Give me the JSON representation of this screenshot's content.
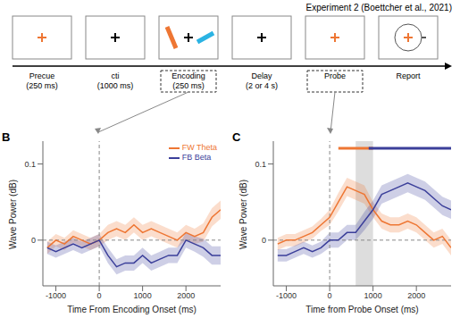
{
  "title": "Experiment 2 (Boettcher et al., 2021)",
  "panel_a": {
    "stages": [
      {
        "name": "Precue",
        "duration": "(250 ms)"
      },
      {
        "name": "cti",
        "duration": "(1000 ms)"
      },
      {
        "name": "Encoding",
        "duration": "(250 ms)"
      },
      {
        "name": "Delay",
        "duration": "(2 or 4 s)"
      },
      {
        "name": "Probe"
      },
      {
        "name": "Report"
      }
    ]
  },
  "chart_data": [
    {
      "type": "line",
      "label": "B",
      "x_label": "Time From Encoding Onset (ms)",
      "y_label": "Wave Power (dB)",
      "xlim": [
        -1300,
        2800
      ],
      "xticks": [
        -1000,
        0,
        1000,
        2000
      ],
      "ylim": [
        -0.06,
        0.13
      ],
      "yticks": [
        0,
        0.1
      ],
      "legend": "upper right",
      "reference_lines": [
        {
          "axis": "x",
          "value": 0
        },
        {
          "axis": "y",
          "value": 0
        }
      ],
      "x": [
        -1200,
        -1000,
        -800,
        -600,
        -400,
        -200,
        0,
        200,
        400,
        600,
        800,
        1000,
        1200,
        1400,
        1600,
        1800,
        2000,
        2200,
        2400,
        2600,
        2800
      ],
      "series": [
        {
          "name": "FW Theta",
          "color": "#ee7633",
          "values": [
            -0.01,
            0,
            -0.005,
            0.005,
            0,
            -0.005,
            0,
            0.01,
            0.015,
            0.01,
            0.02,
            0.01,
            0.015,
            0.01,
            0.005,
            0,
            0.01,
            0.005,
            0.01,
            0.03,
            0.04
          ],
          "errors": [
            0.008,
            0.008,
            0.008,
            0.008,
            0.008,
            0.008,
            0.008,
            0.01,
            0.01,
            0.01,
            0.01,
            0.01,
            0.01,
            0.01,
            0.01,
            0.01,
            0.01,
            0.01,
            0.012,
            0.012,
            0.012
          ]
        },
        {
          "name": "FB Beta",
          "color": "#3b3f9a",
          "values": [
            -0.01,
            -0.015,
            -0.01,
            -0.005,
            -0.01,
            -0.005,
            0,
            -0.02,
            -0.035,
            -0.03,
            -0.03,
            -0.02,
            -0.03,
            -0.025,
            -0.02,
            -0.02,
            0,
            -0.005,
            -0.01,
            -0.02,
            -0.02
          ],
          "errors": [
            0.008,
            0.008,
            0.008,
            0.008,
            0.008,
            0.008,
            0.008,
            0.01,
            0.01,
            0.01,
            0.01,
            0.01,
            0.01,
            0.01,
            0.01,
            0.01,
            0.01,
            0.01,
            0.012,
            0.012,
            0.012
          ]
        }
      ]
    },
    {
      "type": "line",
      "label": "C",
      "x_label": "Time from Probe Onset (ms)",
      "y_label": "Wave Power (dB)",
      "xlim": [
        -1300,
        2800
      ],
      "xticks": [
        -1000,
        0,
        1000,
        2000
      ],
      "ylim": [
        -0.06,
        0.13
      ],
      "yticks": [
        0,
        0.1
      ],
      "reference_lines": [
        {
          "axis": "x",
          "value": 0
        },
        {
          "axis": "y",
          "value": 0
        }
      ],
      "shaded_region": [
        600,
        1000
      ],
      "significance": [
        {
          "series": "FW Theta",
          "x": [
            200,
            1000
          ]
        },
        {
          "series": "FB Beta",
          "x": [
            900,
            2800
          ]
        }
      ],
      "x": [
        -1200,
        -1000,
        -800,
        -600,
        -400,
        -200,
        0,
        200,
        400,
        600,
        800,
        1000,
        1200,
        1400,
        1600,
        1800,
        2000,
        2200,
        2400,
        2600,
        2800
      ],
      "series": [
        {
          "name": "FW Theta",
          "color": "#ee7633",
          "values": [
            -0.005,
            0,
            0,
            0.005,
            0.01,
            0.02,
            0.03,
            0.05,
            0.07,
            0.065,
            0.06,
            0.04,
            0.025,
            0.02,
            0.02,
            0.025,
            0.02,
            0.01,
            0,
            0.005,
            -0.01
          ],
          "errors": [
            0.008,
            0.008,
            0.008,
            0.008,
            0.008,
            0.008,
            0.01,
            0.012,
            0.012,
            0.012,
            0.012,
            0.01,
            0.01,
            0.01,
            0.01,
            0.01,
            0.01,
            0.01,
            0.01,
            0.01,
            0.01
          ]
        },
        {
          "name": "FB Beta",
          "color": "#3b3f9a",
          "values": [
            -0.02,
            -0.02,
            -0.015,
            -0.01,
            -0.015,
            -0.01,
            0,
            0,
            0.01,
            0.01,
            0.025,
            0.04,
            0.06,
            0.065,
            0.07,
            0.075,
            0.07,
            0.065,
            0.055,
            0.045,
            0.04
          ],
          "errors": [
            0.008,
            0.008,
            0.008,
            0.008,
            0.008,
            0.008,
            0.01,
            0.01,
            0.01,
            0.01,
            0.012,
            0.012,
            0.012,
            0.012,
            0.012,
            0.012,
            0.012,
            0.012,
            0.012,
            0.012,
            0.012
          ]
        }
      ]
    }
  ]
}
